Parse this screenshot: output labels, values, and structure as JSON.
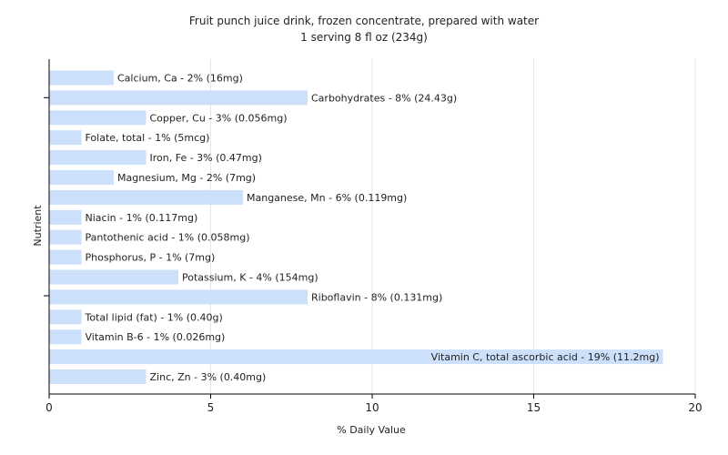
{
  "chart_data": {
    "type": "bar",
    "orientation": "horizontal",
    "title": "Fruit punch juice drink, frozen concentrate, prepared with water",
    "subtitle": "1 serving 8 fl oz (234g)",
    "xlabel": "% Daily Value",
    "ylabel": "Nutrient",
    "xlim": [
      0,
      20
    ],
    "xticks": [
      0,
      5,
      10,
      15,
      20
    ],
    "grid": true,
    "bar_color": "#cce0fb",
    "categories": [
      "Calcium, Ca",
      "Carbohydrates",
      "Copper, Cu",
      "Folate, total",
      "Iron, Fe",
      "Magnesium, Mg",
      "Manganese, Mn",
      "Niacin",
      "Pantothenic acid",
      "Phosphorus, P",
      "Potassium, K",
      "Riboflavin",
      "Total lipid (fat)",
      "Vitamin B-6",
      "Vitamin C, total ascorbic acid",
      "Zinc, Zn"
    ],
    "values": [
      2,
      8,
      3,
      1,
      3,
      2,
      6,
      1,
      1,
      1,
      4,
      8,
      1,
      1,
      19,
      3
    ],
    "labels": [
      "Calcium, Ca - 2% (16mg)",
      "Carbohydrates - 8% (24.43g)",
      "Copper, Cu - 3% (0.056mg)",
      "Folate, total - 1% (5mcg)",
      "Iron, Fe - 3% (0.47mg)",
      "Magnesium, Mg - 2% (7mg)",
      "Manganese, Mn - 6% (0.119mg)",
      "Niacin - 1% (0.117mg)",
      "Pantothenic acid - 1% (0.058mg)",
      "Phosphorus, P - 1% (7mg)",
      "Potassium, K - 4% (154mg)",
      "Riboflavin - 8% (0.131mg)",
      "Total lipid (fat) - 1% (0.40g)",
      "Vitamin B-6 - 1% (0.026mg)",
      "Vitamin C, total ascorbic acid - 19% (11.2mg)",
      "Zinc, Zn - 3% (0.40mg)"
    ]
  }
}
